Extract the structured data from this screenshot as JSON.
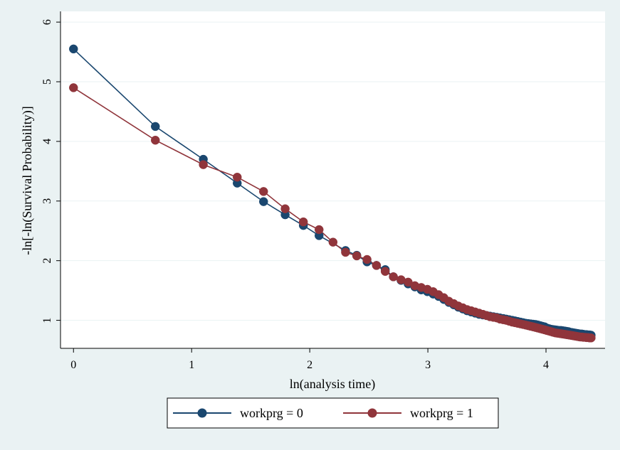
{
  "chart_data": {
    "type": "line",
    "xlabel": "ln(analysis time)",
    "ylabel": "-ln[-ln(Survival Probability)]",
    "xlim": [
      -0.11,
      4.5
    ],
    "ylim": [
      0.53,
      6.18
    ],
    "xticks": [
      0,
      1,
      2,
      3,
      4
    ],
    "yticks": [
      1,
      2,
      3,
      4,
      5,
      6
    ],
    "grid": "horizontal",
    "legend_position": "bottom",
    "series": [
      {
        "name": "workprg = 0",
        "color": "#1a476f",
        "x": [
          0,
          0.693,
          1.099,
          1.386,
          1.609,
          1.792,
          1.946,
          2.079,
          2.303,
          2.398,
          2.485,
          2.565,
          2.639,
          2.708,
          2.773,
          2.833,
          2.89,
          2.944,
          2.996,
          3.045,
          3.091,
          3.135,
          3.178,
          3.219,
          3.258,
          3.296,
          3.332,
          3.367,
          3.401,
          3.434,
          3.466,
          3.497,
          3.526,
          3.555,
          3.584,
          3.611,
          3.638,
          3.664,
          3.689,
          3.714,
          3.738,
          3.761,
          3.784,
          3.807,
          3.829,
          3.85,
          3.871,
          3.892,
          3.912,
          3.932,
          3.951,
          3.97,
          3.989,
          4.007,
          4.025,
          4.043,
          4.06,
          4.078,
          4.094,
          4.111,
          4.127,
          4.143,
          4.159,
          4.174,
          4.19,
          4.205,
          4.22,
          4.234,
          4.248,
          4.263,
          4.277,
          4.29,
          4.304,
          4.317,
          4.331,
          4.344,
          4.357,
          4.369,
          4.382
        ],
        "y": [
          5.55,
          4.25,
          3.7,
          3.3,
          2.99,
          2.77,
          2.59,
          2.42,
          2.17,
          2.09,
          1.98,
          1.92,
          1.85,
          1.73,
          1.67,
          1.61,
          1.56,
          1.51,
          1.48,
          1.44,
          1.4,
          1.35,
          1.3,
          1.26,
          1.22,
          1.19,
          1.16,
          1.14,
          1.12,
          1.1,
          1.09,
          1.08,
          1.07,
          1.06,
          1.05,
          1.04,
          1.03,
          1.02,
          1.01,
          1.0,
          0.99,
          0.98,
          0.97,
          0.96,
          0.95,
          0.945,
          0.94,
          0.935,
          0.93,
          0.92,
          0.91,
          0.9,
          0.89,
          0.87,
          0.86,
          0.85,
          0.845,
          0.84,
          0.835,
          0.83,
          0.83,
          0.825,
          0.82,
          0.815,
          0.81,
          0.8,
          0.795,
          0.79,
          0.785,
          0.78,
          0.775,
          0.77,
          0.77,
          0.765,
          0.76,
          0.76,
          0.755,
          0.755,
          0.75
        ]
      },
      {
        "name": "workprg = 1",
        "color": "#90353b",
        "x": [
          0,
          0.693,
          1.099,
          1.386,
          1.609,
          1.792,
          1.946,
          2.079,
          2.197,
          2.303,
          2.398,
          2.485,
          2.565,
          2.639,
          2.708,
          2.773,
          2.833,
          2.89,
          2.944,
          2.996,
          3.045,
          3.091,
          3.135,
          3.178,
          3.219,
          3.258,
          3.296,
          3.332,
          3.367,
          3.401,
          3.434,
          3.466,
          3.497,
          3.526,
          3.555,
          3.584,
          3.611,
          3.638,
          3.664,
          3.689,
          3.714,
          3.738,
          3.761,
          3.784,
          3.807,
          3.829,
          3.85,
          3.871,
          3.892,
          3.912,
          3.932,
          3.951,
          3.97,
          3.989,
          4.007,
          4.025,
          4.043,
          4.06,
          4.078,
          4.094,
          4.111,
          4.127,
          4.143,
          4.159,
          4.174,
          4.19,
          4.205,
          4.22,
          4.234,
          4.248,
          4.263,
          4.277,
          4.29,
          4.304,
          4.317,
          4.331,
          4.344,
          4.357,
          4.369,
          4.382
        ],
        "y": [
          4.9,
          4.02,
          3.61,
          3.4,
          3.16,
          2.87,
          2.65,
          2.52,
          2.31,
          2.14,
          2.08,
          2.02,
          1.92,
          1.82,
          1.73,
          1.68,
          1.64,
          1.58,
          1.55,
          1.52,
          1.48,
          1.43,
          1.38,
          1.32,
          1.28,
          1.24,
          1.21,
          1.18,
          1.16,
          1.14,
          1.12,
          1.1,
          1.08,
          1.06,
          1.05,
          1.04,
          1.02,
          1.01,
          1.0,
          0.985,
          0.97,
          0.96,
          0.95,
          0.94,
          0.93,
          0.92,
          0.91,
          0.9,
          0.89,
          0.88,
          0.87,
          0.86,
          0.85,
          0.84,
          0.83,
          0.82,
          0.81,
          0.8,
          0.79,
          0.785,
          0.78,
          0.775,
          0.77,
          0.765,
          0.76,
          0.755,
          0.75,
          0.745,
          0.74,
          0.735,
          0.73,
          0.725,
          0.72,
          0.72,
          0.715,
          0.715,
          0.71,
          0.71,
          0.705,
          0.705
        ]
      }
    ]
  }
}
